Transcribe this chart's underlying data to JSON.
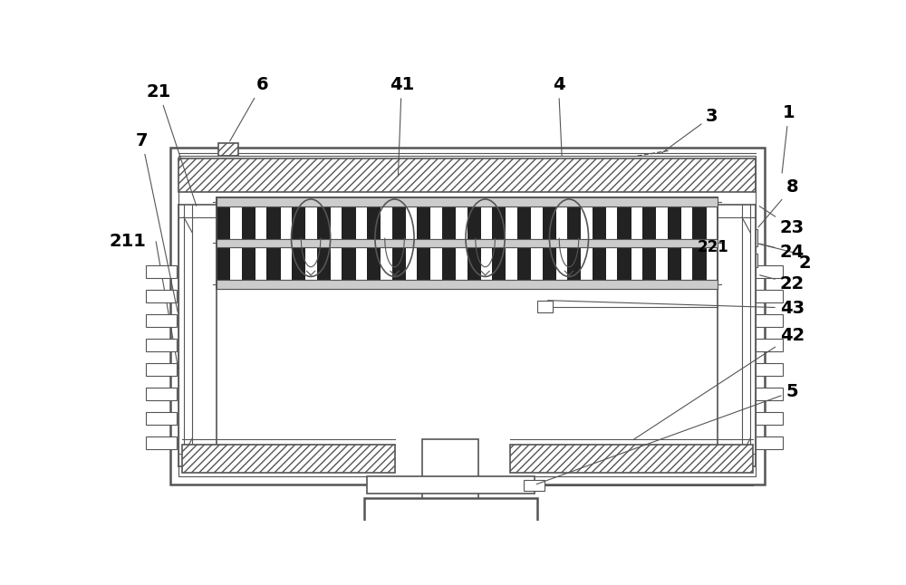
{
  "bg_color": "#ffffff",
  "line_color": "#555555",
  "fig_width": 10.0,
  "fig_height": 6.46,
  "dpi": 100
}
